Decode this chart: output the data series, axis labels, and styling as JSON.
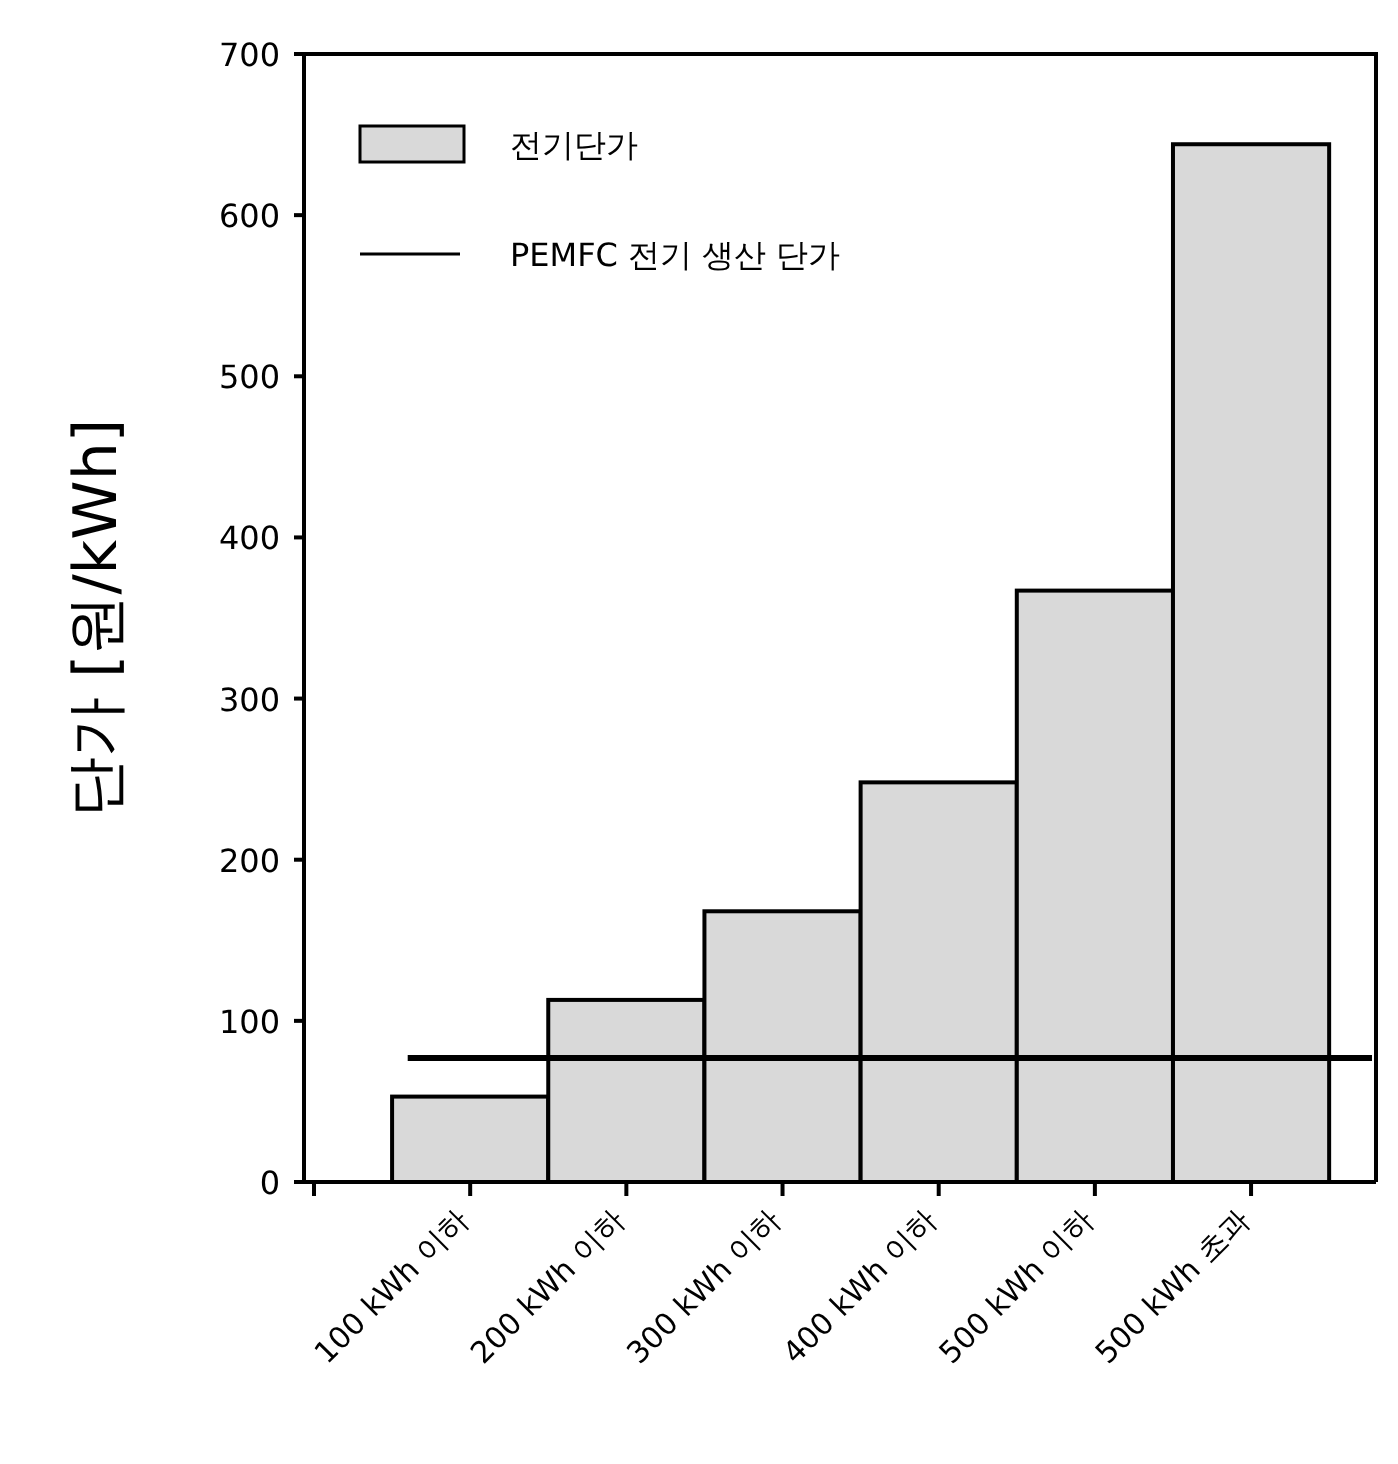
{
  "chart_data": {
    "type": "bar",
    "ylabel": "단가 [원/kWh]",
    "categories": [
      "100 kWh 이하",
      "200 kWh 이하",
      "300 kWh 이하",
      "400 kWh 이하",
      "500 kWh 이하",
      "500 kWh 초과"
    ],
    "series": [
      {
        "name": "전기단가",
        "color": "#d9d9d9",
        "values": [
          53,
          113,
          168,
          248,
          367,
          644
        ]
      }
    ],
    "ref_lines": [
      {
        "axis": "y",
        "value": 77,
        "label": "PEMFC 전기 생산 단가",
        "color": "#000000"
      }
    ],
    "ylim": [
      0,
      700
    ],
    "yticks": [
      0,
      100,
      200,
      300,
      400,
      500,
      600,
      700
    ],
    "legend": "top left"
  }
}
